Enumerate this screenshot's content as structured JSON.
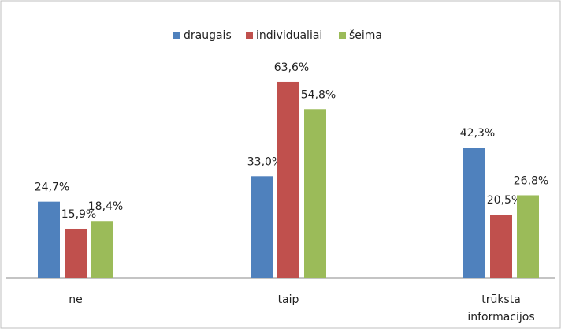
{
  "chart_data": {
    "type": "bar",
    "categories": [
      "ne",
      "taip",
      "trūksta informacijos"
    ],
    "series": [
      {
        "name": "draugais",
        "color": "#4f81bd",
        "values": [
          24.7,
          33.0,
          42.3
        ],
        "value_labels": [
          "24,7%",
          "33,0%",
          "42,3%"
        ]
      },
      {
        "name": "individualiai",
        "color": "#c0504d",
        "values": [
          15.9,
          63.6,
          20.5
        ],
        "value_labels": [
          "15,9%",
          "63,6%",
          "20,5%"
        ]
      },
      {
        "name": "šeima",
        "color": "#9bbb59",
        "values": [
          18.4,
          54.8,
          26.8
        ],
        "value_labels": [
          "18,4%",
          "54,8%",
          "26,8%"
        ]
      }
    ],
    "ylim": [
      0,
      70
    ],
    "legend": "top"
  }
}
